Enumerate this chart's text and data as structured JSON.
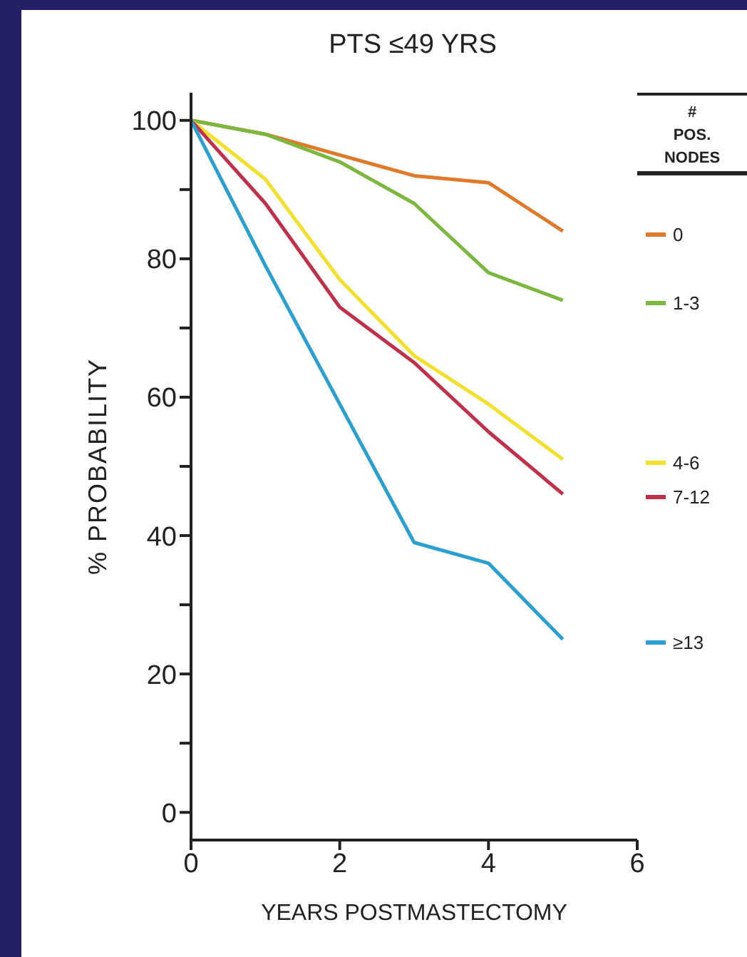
{
  "chart_data": {
    "type": "line",
    "title": "PTS ≤49 YRS",
    "xlabel": "YEARS POSTMASTECTOMY",
    "ylabel": "% PROBABILITY",
    "legend_title": "# POS. NODES",
    "legend": "right",
    "marker": "none",
    "line_style": "solid",
    "grid": false,
    "x": [
      0,
      1,
      2,
      3,
      4,
      5
    ],
    "series": [
      {
        "name": "0",
        "color": "#e07a2a",
        "values": [
          100,
          98,
          95,
          92,
          91,
          84
        ]
      },
      {
        "name": "1-3",
        "color": "#7cb840",
        "values": [
          100,
          98,
          94,
          88,
          78,
          74
        ]
      },
      {
        "name": "4-6",
        "color": "#f2e02c",
        "values": [
          100,
          91.5,
          77,
          66,
          59,
          51
        ]
      },
      {
        "name": "7-12",
        "color": "#c0304a",
        "values": [
          100,
          88,
          73,
          65,
          55,
          46
        ]
      },
      {
        "name": "≥13",
        "color": "#2a9fd0",
        "values": [
          100,
          79,
          59,
          39,
          36,
          25
        ]
      }
    ],
    "xlim": [
      0,
      6
    ],
    "xticks": [
      0,
      2,
      4,
      6
    ],
    "ylim": [
      -4,
      104
    ],
    "yticks": [
      0,
      {
        "value": 10,
        "label": null
      },
      20,
      {
        "value": 30,
        "label": null
      },
      40,
      {
        "value": 50,
        "label": null
      },
      60,
      {
        "value": 70,
        "label": null
      },
      80,
      {
        "value": 90,
        "label": null
      },
      100
    ]
  }
}
